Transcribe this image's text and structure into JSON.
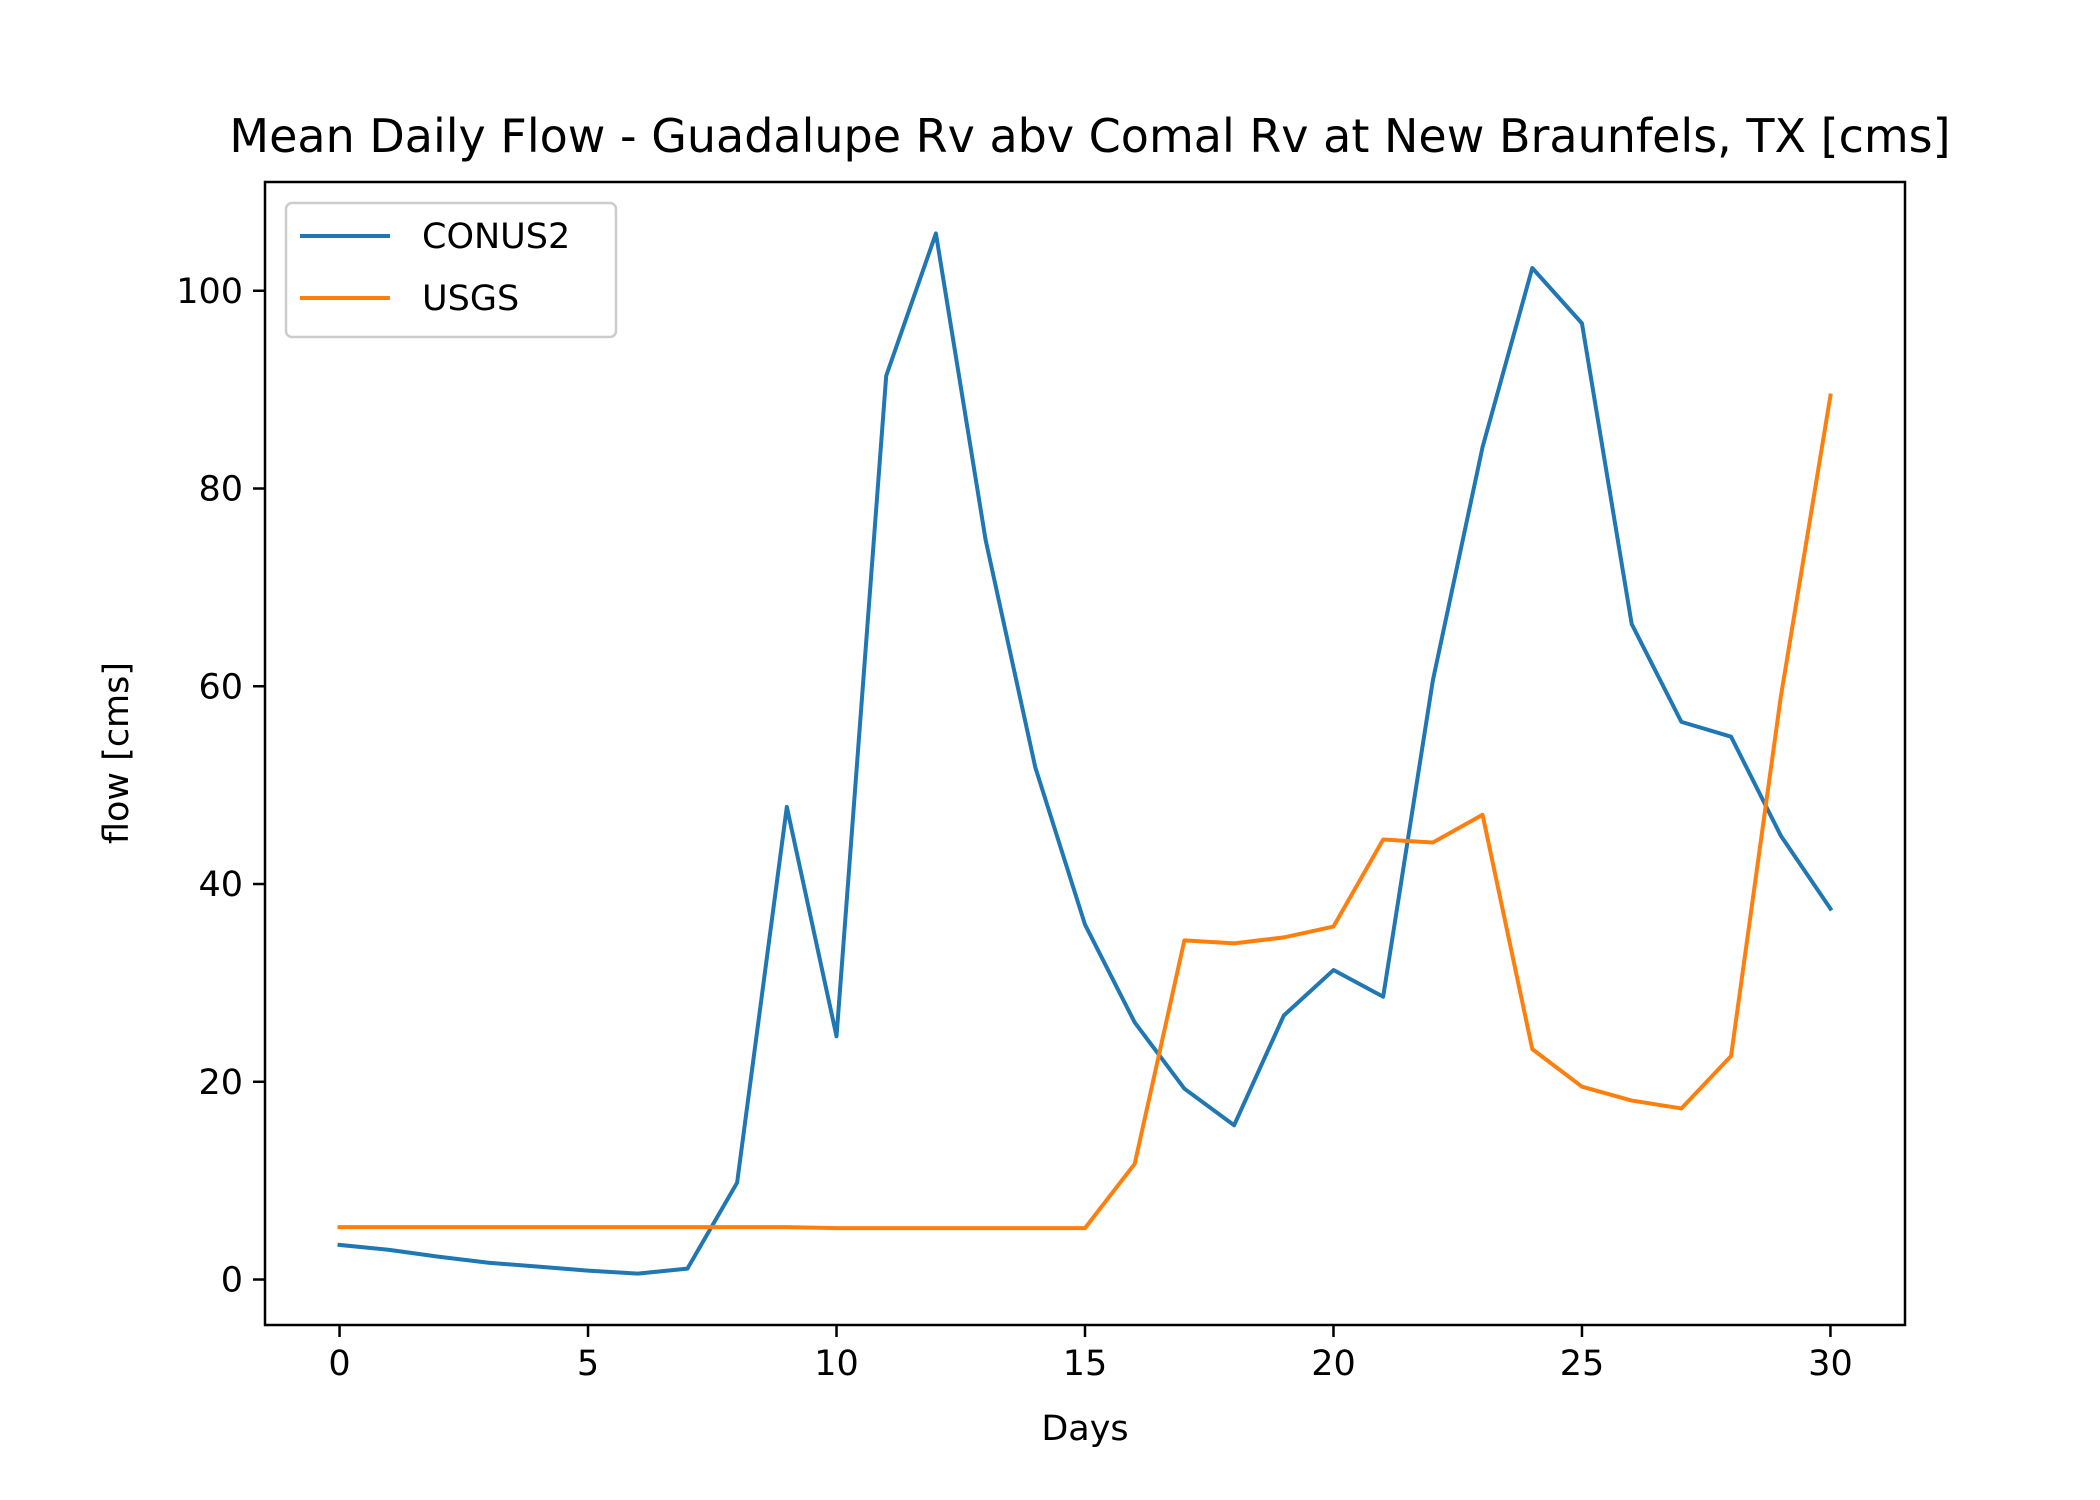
{
  "chart_data": {
    "type": "line",
    "title": "Mean Daily Flow - Guadalupe Rv abv Comal Rv at New Braunfels, TX [cms]",
    "xlabel": "Days",
    "ylabel": "flow [cms]",
    "xlim": [
      -1.5,
      31.5
    ],
    "ylim": [
      -4.6,
      111.0
    ],
    "xticks": [
      0,
      5,
      10,
      15,
      20,
      25,
      30
    ],
    "yticks": [
      0,
      20,
      40,
      60,
      80,
      100
    ],
    "grid": false,
    "legend_position": "upper-left",
    "x": [
      0,
      1,
      2,
      3,
      4,
      5,
      6,
      7,
      8,
      9,
      10,
      11,
      12,
      13,
      14,
      15,
      16,
      17,
      18,
      19,
      20,
      21,
      22,
      23,
      24,
      25,
      26,
      27,
      28,
      29,
      30
    ],
    "series": [
      {
        "name": "CONUS2",
        "color": "#1f77b4",
        "values": [
          3.5,
          3.0,
          2.3,
          1.7,
          1.3,
          0.9,
          0.6,
          1.1,
          9.8,
          47.8,
          24.6,
          91.4,
          105.8,
          74.8,
          51.8,
          35.9,
          26.0,
          19.3,
          15.6,
          26.7,
          31.3,
          28.6,
          60.6,
          84.2,
          102.3,
          96.7,
          66.3,
          56.4,
          54.9,
          44.9,
          37.5
        ]
      },
      {
        "name": "USGS",
        "color": "#ff7f0e",
        "values": [
          5.3,
          5.3,
          5.3,
          5.3,
          5.3,
          5.3,
          5.3,
          5.3,
          5.3,
          5.3,
          5.2,
          5.2,
          5.2,
          5.2,
          5.2,
          5.2,
          11.7,
          34.3,
          34.0,
          34.6,
          35.7,
          44.5,
          44.2,
          47.0,
          23.3,
          19.5,
          18.1,
          17.3,
          22.6,
          58.9,
          89.4
        ]
      }
    ]
  }
}
